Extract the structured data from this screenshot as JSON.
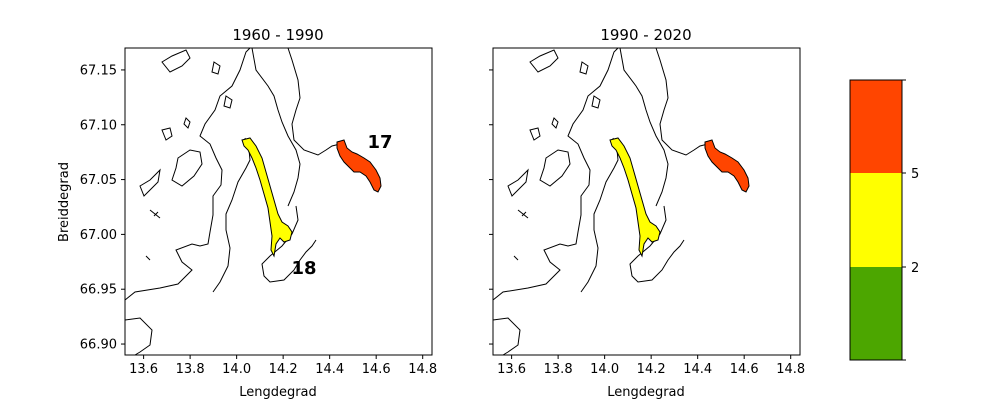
{
  "panels": [
    {
      "title": "1960 - 1990",
      "labels": [
        "17",
        "18"
      ],
      "zones": [
        {
          "label": "17",
          "value_class": "high",
          "color": "#ff4500"
        },
        {
          "label": "18",
          "value_class": "mid",
          "color": "#ffff00"
        }
      ]
    },
    {
      "title": "1990 - 2020",
      "labels": [],
      "zones": [
        {
          "label": "",
          "value_class": "high",
          "color": "#ff4500"
        },
        {
          "label": "",
          "value_class": "mid",
          "color": "#ffff00"
        }
      ]
    }
  ],
  "axes": {
    "xlabel": "Lengdegrad",
    "ylabel": "Breiddegrad",
    "xticks": [
      "13.6",
      "13.8",
      "14.0",
      "14.2",
      "14.4",
      "14.6",
      "14.8"
    ],
    "xtick_values": [
      13.6,
      13.8,
      14.0,
      14.2,
      14.4,
      14.6,
      14.8
    ],
    "yticks": [
      "66.90",
      "66.95",
      "67.00",
      "67.05",
      "67.10",
      "67.15"
    ],
    "ytick_values": [
      66.9,
      66.95,
      67.0,
      67.05,
      67.1,
      67.15
    ],
    "xlim": [
      13.52,
      14.84
    ],
    "ylim": [
      66.89,
      67.17
    ]
  },
  "colorbar": {
    "ticks": [
      "2",
      "5"
    ],
    "colors": {
      "low": "#4ca600",
      "mid": "#ffff00",
      "high": "#ff4500"
    }
  }
}
